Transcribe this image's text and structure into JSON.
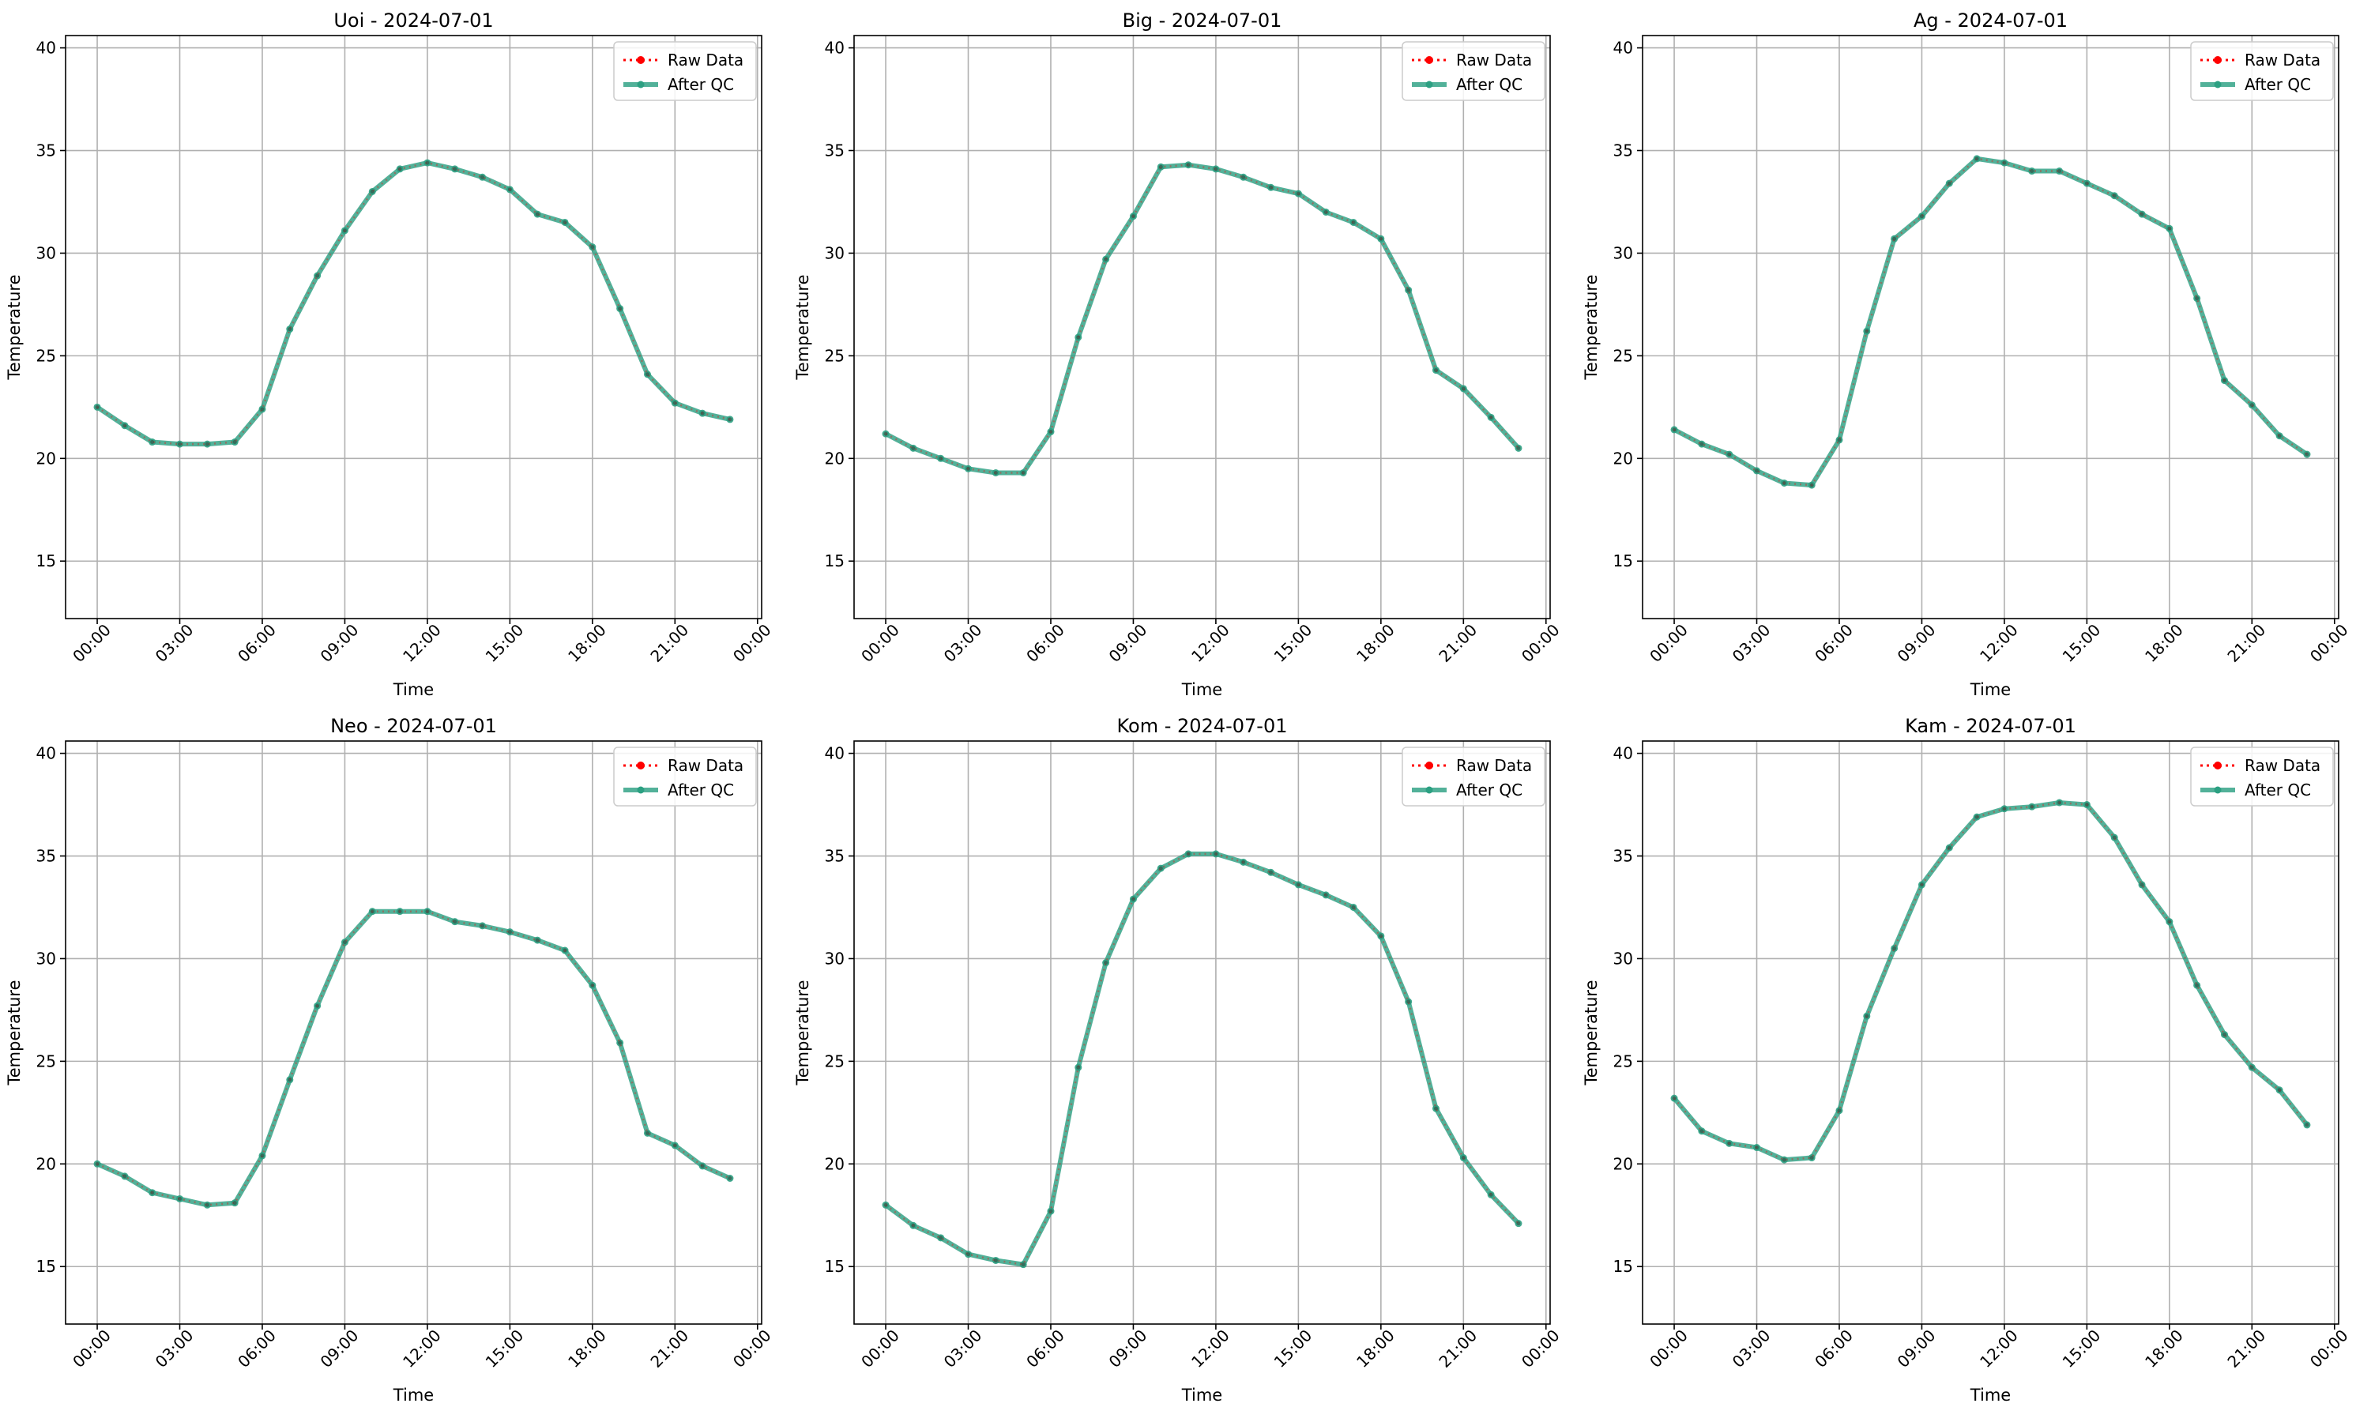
{
  "figure": {
    "common": {
      "xlabel": "Time",
      "ylabel": "Temperature",
      "xticks": [
        {
          "value": 0,
          "label": "00:00"
        },
        {
          "value": 3,
          "label": "03:00"
        },
        {
          "value": 6,
          "label": "06:00"
        },
        {
          "value": 9,
          "label": "09:00"
        },
        {
          "value": 12,
          "label": "12:00"
        },
        {
          "value": 15,
          "label": "15:00"
        },
        {
          "value": 18,
          "label": "18:00"
        },
        {
          "value": 21,
          "label": "21:00"
        },
        {
          "value": 24,
          "label": "00:00"
        }
      ],
      "yticks": [
        15,
        20,
        25,
        30,
        35,
        40
      ],
      "xlim": [
        -1.15,
        24.15
      ],
      "ylim": [
        12.2,
        40.6
      ],
      "legend": [
        "Raw Data",
        "After QC"
      ],
      "colors": {
        "raw": "#ff0000",
        "qc": "#2ca082",
        "grid": "#b0b0b0"
      },
      "grid": true,
      "legend_position": "top-right"
    }
  },
  "chart_data": [
    {
      "type": "line",
      "title": "Uoi - 2024-07-01",
      "xlabel": "Time",
      "ylabel": "Temperature",
      "x": [
        0,
        1,
        2,
        3,
        4,
        5,
        6,
        7,
        8,
        9,
        10,
        11,
        12,
        13,
        14,
        15,
        16,
        17,
        18,
        19,
        20,
        21,
        22,
        23
      ],
      "series": [
        {
          "name": "Raw Data",
          "values": [
            22.5,
            21.6,
            20.8,
            20.7,
            20.7,
            20.8,
            22.4,
            26.3,
            28.9,
            31.1,
            33.0,
            34.1,
            34.4,
            34.1,
            33.7,
            33.1,
            31.9,
            31.5,
            30.3,
            27.3,
            24.1,
            22.7,
            22.2,
            21.9
          ]
        },
        {
          "name": "After QC",
          "values": [
            22.5,
            21.6,
            20.8,
            20.7,
            20.7,
            20.8,
            22.4,
            26.3,
            28.9,
            31.1,
            33.0,
            34.1,
            34.4,
            34.1,
            33.7,
            33.1,
            31.9,
            31.5,
            30.3,
            27.3,
            24.1,
            22.7,
            22.2,
            21.9
          ]
        }
      ],
      "ylim": [
        12.2,
        40.6
      ],
      "grid": true,
      "legend_position": "top-right"
    },
    {
      "type": "line",
      "title": "Big - 2024-07-01",
      "xlabel": "Time",
      "ylabel": "Temperature",
      "x": [
        0,
        1,
        2,
        3,
        4,
        5,
        6,
        7,
        8,
        9,
        10,
        11,
        12,
        13,
        14,
        15,
        16,
        17,
        18,
        19,
        20,
        21,
        22,
        23
      ],
      "series": [
        {
          "name": "Raw Data",
          "values": [
            21.2,
            20.5,
            20.0,
            19.5,
            19.3,
            19.3,
            21.3,
            25.9,
            29.7,
            31.8,
            34.2,
            34.3,
            34.1,
            33.7,
            33.2,
            32.9,
            32.0,
            31.5,
            30.7,
            28.2,
            24.3,
            23.4,
            22.0,
            20.5
          ]
        },
        {
          "name": "After QC",
          "values": [
            21.2,
            20.5,
            20.0,
            19.5,
            19.3,
            19.3,
            21.3,
            25.9,
            29.7,
            31.8,
            34.2,
            34.3,
            34.1,
            33.7,
            33.2,
            32.9,
            32.0,
            31.5,
            30.7,
            28.2,
            24.3,
            23.4,
            22.0,
            20.5
          ]
        }
      ],
      "ylim": [
        12.2,
        40.6
      ],
      "grid": true,
      "legend_position": "top-right"
    },
    {
      "type": "line",
      "title": "Ag - 2024-07-01",
      "xlabel": "Time",
      "ylabel": "Temperature",
      "x": [
        0,
        1,
        2,
        3,
        4,
        5,
        6,
        7,
        8,
        9,
        10,
        11,
        12,
        13,
        14,
        15,
        16,
        17,
        18,
        19,
        20,
        21,
        22,
        23
      ],
      "series": [
        {
          "name": "Raw Data",
          "values": [
            21.4,
            20.7,
            20.2,
            19.4,
            18.8,
            18.7,
            20.9,
            26.2,
            30.7,
            31.8,
            33.4,
            34.6,
            34.4,
            34.0,
            34.0,
            33.4,
            32.8,
            31.9,
            31.2,
            27.8,
            23.8,
            22.6,
            21.1,
            20.2
          ]
        },
        {
          "name": "After QC",
          "values": [
            21.4,
            20.7,
            20.2,
            19.4,
            18.8,
            18.7,
            20.9,
            26.2,
            30.7,
            31.8,
            33.4,
            34.6,
            34.4,
            34.0,
            34.0,
            33.4,
            32.8,
            31.9,
            31.2,
            27.8,
            23.8,
            22.6,
            21.1,
            20.2
          ]
        }
      ],
      "ylim": [
        12.2,
        40.6
      ],
      "grid": true,
      "legend_position": "top-right"
    },
    {
      "type": "line",
      "title": "Neo - 2024-07-01",
      "xlabel": "Time",
      "ylabel": "Temperature",
      "x": [
        0,
        1,
        2,
        3,
        4,
        5,
        6,
        7,
        8,
        9,
        10,
        11,
        12,
        13,
        14,
        15,
        16,
        17,
        18,
        19,
        20,
        21,
        22,
        23
      ],
      "series": [
        {
          "name": "Raw Data",
          "values": [
            20.0,
            19.4,
            18.6,
            18.3,
            18.0,
            18.1,
            20.4,
            24.1,
            27.7,
            30.8,
            32.3,
            32.3,
            32.3,
            31.8,
            31.6,
            31.3,
            30.9,
            30.4,
            28.7,
            25.9,
            21.5,
            20.9,
            19.9,
            19.3
          ]
        },
        {
          "name": "After QC",
          "values": [
            20.0,
            19.4,
            18.6,
            18.3,
            18.0,
            18.1,
            20.4,
            24.1,
            27.7,
            30.8,
            32.3,
            32.3,
            32.3,
            31.8,
            31.6,
            31.3,
            30.9,
            30.4,
            28.7,
            25.9,
            21.5,
            20.9,
            19.9,
            19.3
          ]
        }
      ],
      "ylim": [
        12.2,
        40.6
      ],
      "grid": true,
      "legend_position": "top-right"
    },
    {
      "type": "line",
      "title": "Kom - 2024-07-01",
      "xlabel": "Time",
      "ylabel": "Temperature",
      "x": [
        0,
        1,
        2,
        3,
        4,
        5,
        6,
        7,
        8,
        9,
        10,
        11,
        12,
        13,
        14,
        15,
        16,
        17,
        18,
        19,
        20,
        21,
        22,
        23
      ],
      "series": [
        {
          "name": "Raw Data",
          "values": [
            18.0,
            17.0,
            16.4,
            15.6,
            15.3,
            15.1,
            17.7,
            24.7,
            29.8,
            32.9,
            34.4,
            35.1,
            35.1,
            34.7,
            34.2,
            33.6,
            33.1,
            32.5,
            31.1,
            27.9,
            22.7,
            20.3,
            18.5,
            17.1
          ]
        },
        {
          "name": "After QC",
          "values": [
            18.0,
            17.0,
            16.4,
            15.6,
            15.3,
            15.1,
            17.7,
            24.7,
            29.8,
            32.9,
            34.4,
            35.1,
            35.1,
            34.7,
            34.2,
            33.6,
            33.1,
            32.5,
            31.1,
            27.9,
            22.7,
            20.3,
            18.5,
            17.1
          ]
        }
      ],
      "ylim": [
        12.2,
        40.6
      ],
      "grid": true,
      "legend_position": "top-right"
    },
    {
      "type": "line",
      "title": "Kam - 2024-07-01",
      "xlabel": "Time",
      "ylabel": "Temperature",
      "x": [
        0,
        1,
        2,
        3,
        4,
        5,
        6,
        7,
        8,
        9,
        10,
        11,
        12,
        13,
        14,
        15,
        16,
        17,
        18,
        19,
        20,
        21,
        22,
        23
      ],
      "series": [
        {
          "name": "Raw Data",
          "values": [
            23.2,
            21.6,
            21.0,
            20.8,
            20.2,
            20.3,
            22.6,
            27.2,
            30.5,
            33.6,
            35.4,
            36.9,
            37.3,
            37.4,
            37.6,
            37.5,
            35.9,
            33.6,
            31.8,
            28.7,
            26.3,
            24.7,
            23.6,
            21.9
          ]
        },
        {
          "name": "After QC",
          "values": [
            23.2,
            21.6,
            21.0,
            20.8,
            20.2,
            20.3,
            22.6,
            27.2,
            30.5,
            33.6,
            35.4,
            36.9,
            37.3,
            37.4,
            37.6,
            37.5,
            35.9,
            33.6,
            31.8,
            28.7,
            26.3,
            24.7,
            23.6,
            21.9
          ]
        }
      ],
      "ylim": [
        12.2,
        40.6
      ],
      "grid": true,
      "legend_position": "top-right"
    }
  ]
}
